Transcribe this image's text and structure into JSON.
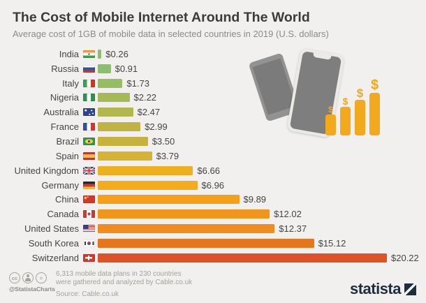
{
  "header": {
    "title": "The Cost of Mobile Internet Around The World",
    "subtitle": "Average cost of 1GB of mobile data in selected countries in 2019 (U.S. dollars)"
  },
  "chart_data": {
    "type": "bar",
    "orientation": "horizontal",
    "title": "The Cost of Mobile Internet Around The World",
    "subtitle": "Average cost of 1GB of mobile data in selected countries in 2019 (U.S. dollars)",
    "unit": "U.S. dollars per 1GB of mobile data",
    "xlim": [
      0,
      20.22
    ],
    "grid": false,
    "legend": false,
    "categories": [
      "India",
      "Russia",
      "Italy",
      "Nigeria",
      "Australia",
      "France",
      "Brazil",
      "Spain",
      "United Kingdom",
      "Germany",
      "China",
      "Canada",
      "United States",
      "South Korea",
      "Switzerland"
    ],
    "values": [
      0.26,
      0.91,
      1.73,
      2.22,
      2.47,
      2.99,
      3.5,
      3.79,
      6.66,
      6.96,
      9.89,
      12.02,
      12.37,
      15.12,
      20.22
    ],
    "value_labels": [
      "$0.26",
      "$0.91",
      "$1.73",
      "$2.22",
      "$2.47",
      "$2.99",
      "$3.50",
      "$3.79",
      "$6.66",
      "$6.96",
      "$9.89",
      "$12.02",
      "$12.37",
      "$15.12",
      "$20.22"
    ],
    "flags": [
      "india",
      "russia",
      "italy",
      "nigeria",
      "australia",
      "france",
      "brazil",
      "spain",
      "uk",
      "germany",
      "china",
      "canada",
      "usa",
      "southkorea",
      "switzerland"
    ],
    "bar_colors": [
      "#8dbd72",
      "#8dbd72",
      "#97bc63",
      "#a5ba56",
      "#b2b84d",
      "#bfb443",
      "#c8b23e",
      "#d6b335",
      "#eeb021",
      "#f2ac1c",
      "#f4a018",
      "#f2951d",
      "#ef8c1f",
      "#e4761e",
      "#de5229"
    ]
  },
  "illustration": {
    "dollar_sign": "$"
  },
  "footer": {
    "cc_glyph": "cc",
    "equal_glyph": "=",
    "credit": "@StatistaCharts",
    "note_line1": "6,313 mobile data plans in 230 countries",
    "note_line2": "were gathered and analyzed by Cable.co.uk",
    "source": "Source: Cable.co.uk",
    "logo_text": "statista"
  }
}
